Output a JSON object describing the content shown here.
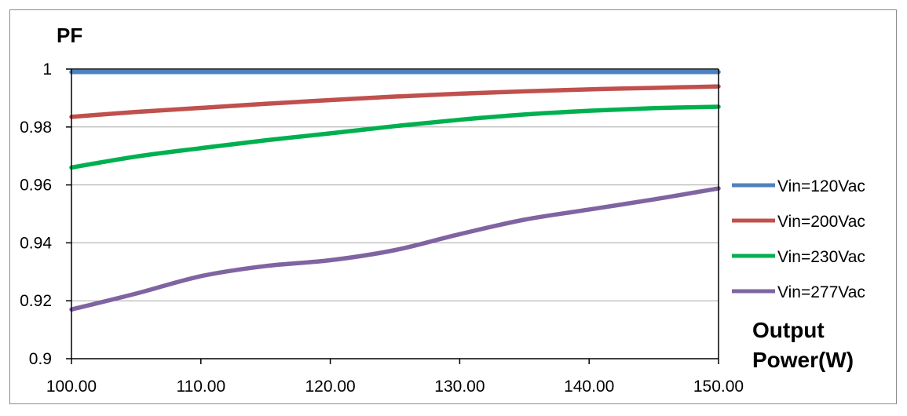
{
  "chart_data": {
    "type": "line",
    "ylabel": "PF",
    "xlabel_lines": [
      "Output",
      "Power(W)"
    ],
    "xlim": [
      100,
      150
    ],
    "ylim": [
      0.9,
      1.0
    ],
    "x_ticks": [
      "100.00",
      "110.00",
      "120.00",
      "130.00",
      "140.00",
      "150.00"
    ],
    "y_ticks": [
      "0.9",
      "0.92",
      "0.94",
      "0.96",
      "0.98",
      "1"
    ],
    "grid": true,
    "legend_position": "right",
    "x": [
      100,
      105,
      110,
      115,
      120,
      125,
      130,
      135,
      140,
      145,
      150
    ],
    "series": [
      {
        "name": "Vin=120Vac",
        "color": "#4f81bd",
        "values": [
          0.999,
          0.999,
          0.999,
          0.999,
          0.999,
          0.999,
          0.999,
          0.999,
          0.999,
          0.999,
          0.999
        ]
      },
      {
        "name": "Vin=200Vac",
        "color": "#c0504d",
        "values": [
          0.9835,
          0.9852,
          0.9866,
          0.988,
          0.9893,
          0.9905,
          0.9915,
          0.9923,
          0.993,
          0.9935,
          0.994
        ]
      },
      {
        "name": "Vin=230Vac",
        "color": "#00b050",
        "values": [
          0.966,
          0.9698,
          0.9727,
          0.9754,
          0.9778,
          0.9803,
          0.9825,
          0.9843,
          0.9856,
          0.9865,
          0.987
        ]
      },
      {
        "name": "Vin=277Vac",
        "color": "#8064a2",
        "values": [
          0.917,
          0.9225,
          0.9285,
          0.932,
          0.934,
          0.9375,
          0.943,
          0.948,
          0.9515,
          0.955,
          0.9588
        ]
      }
    ]
  }
}
